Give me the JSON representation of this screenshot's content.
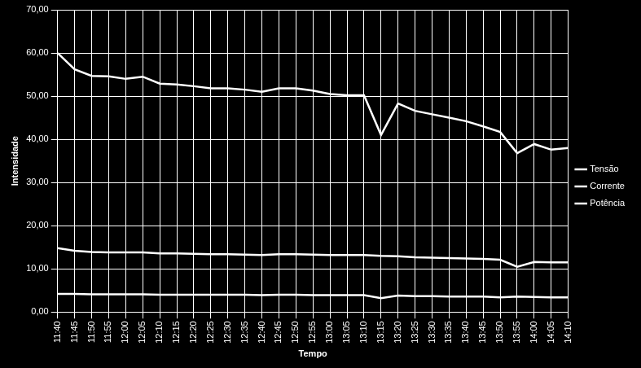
{
  "chart_data": {
    "type": "line",
    "x_label": "Tempo",
    "y_label": "Intensidade",
    "categories": [
      "11:40",
      "11:45",
      "11:50",
      "11:55",
      "12:00",
      "12:05",
      "12:10",
      "12:15",
      "12:20",
      "12:25",
      "12:30",
      "12:35",
      "12:40",
      "12:45",
      "12:50",
      "12:55",
      "13:00",
      "13:05",
      "13:10",
      "13:15",
      "13:20",
      "13:25",
      "13:30",
      "13:35",
      "13:40",
      "13:45",
      "13:50",
      "13:55",
      "14:00",
      "14:05",
      "14:10"
    ],
    "series": [
      {
        "name": "Tensão",
        "color": "#ffffff",
        "values": [
          60.0,
          56.2,
          54.7,
          54.6,
          54.0,
          54.5,
          52.9,
          52.7,
          52.3,
          51.8,
          51.8,
          51.5,
          51.0,
          51.8,
          51.8,
          51.3,
          50.5,
          50.2,
          50.2,
          41.0,
          48.3,
          46.6,
          45.8,
          45.0,
          44.2,
          43.0,
          41.7,
          36.8,
          38.9,
          37.6,
          38.0
        ]
      },
      {
        "name": "Corrente",
        "color": "#ffffff",
        "values": [
          14.8,
          14.2,
          13.9,
          13.8,
          13.8,
          13.8,
          13.6,
          13.6,
          13.5,
          13.4,
          13.4,
          13.3,
          13.2,
          13.4,
          13.4,
          13.3,
          13.2,
          13.2,
          13.2,
          13.0,
          12.9,
          12.7,
          12.6,
          12.5,
          12.4,
          12.3,
          12.1,
          10.5,
          11.6,
          11.5,
          11.5
        ]
      },
      {
        "name": "Potência",
        "color": "#ffffff",
        "values": [
          4.2,
          4.2,
          4.1,
          4.1,
          4.1,
          4.1,
          4.0,
          4.0,
          4.0,
          4.0,
          4.0,
          4.0,
          3.9,
          4.0,
          4.0,
          3.9,
          3.9,
          3.9,
          3.9,
          3.2,
          3.8,
          3.7,
          3.7,
          3.6,
          3.6,
          3.6,
          3.4,
          3.6,
          3.5,
          3.4,
          3.4
        ]
      }
    ],
    "ylim": [
      0,
      70
    ],
    "yticks": [
      {
        "value": 0,
        "label": "0,00"
      },
      {
        "value": 10,
        "label": "10,00"
      },
      {
        "value": 20,
        "label": "20,00"
      },
      {
        "value": 30,
        "label": "30,00"
      },
      {
        "value": 40,
        "label": "40,00"
      },
      {
        "value": 50,
        "label": "50,00"
      },
      {
        "value": 60,
        "label": "60,00"
      },
      {
        "value": 70,
        "label": "70,00"
      }
    ],
    "grid": true,
    "legend": "right"
  }
}
